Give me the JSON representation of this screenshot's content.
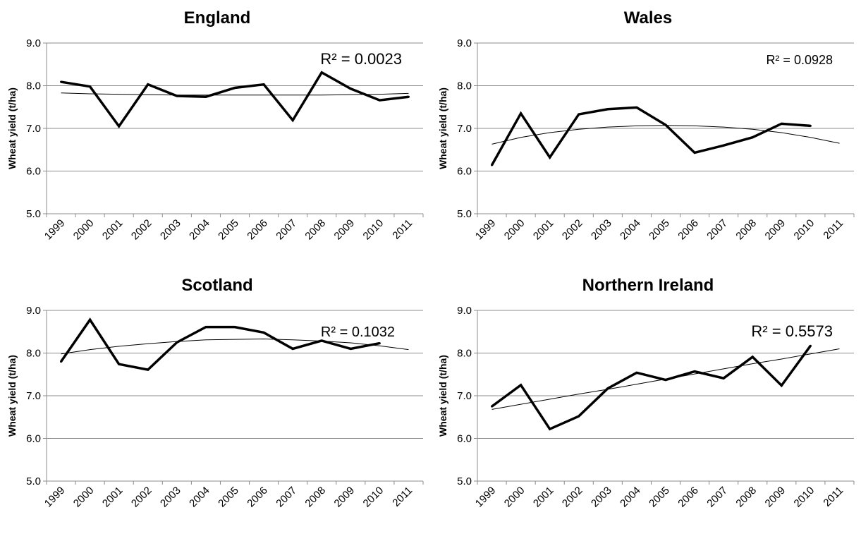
{
  "chart_data": [
    {
      "type": "line",
      "title": "England",
      "ylabel": "Wheat yield (t/ha)",
      "xlabel": "",
      "ylim": [
        5.0,
        9.0
      ],
      "ytick_labels": [
        "5.0",
        "6.0",
        "7.0",
        "8.0",
        "9.0"
      ],
      "categories": [
        "1999",
        "2000",
        "2001",
        "2002",
        "2003",
        "2004",
        "2005",
        "2006",
        "2007",
        "2008",
        "2009",
        "2010",
        "2011"
      ],
      "series": [
        {
          "values": [
            8.09,
            7.98,
            7.05,
            8.03,
            7.76,
            7.74,
            7.95,
            8.03,
            7.19,
            8.31,
            7.93,
            7.66,
            7.74
          ],
          "color": "#000000"
        }
      ],
      "trendline": {
        "kind": "polynomial",
        "values": [
          7.83,
          7.81,
          7.8,
          7.79,
          7.78,
          7.78,
          7.78,
          7.78,
          7.78,
          7.78,
          7.79,
          7.8,
          7.82
        ]
      },
      "r2_label": "R² = 0.0023",
      "grid": true,
      "legend": "none"
    },
    {
      "type": "line",
      "title": "Wales",
      "ylabel": "Wheat yield (t/ha)",
      "xlabel": "",
      "ylim": [
        5.0,
        9.0
      ],
      "ytick_labels": [
        "5.0",
        "6.0",
        "7.0",
        "8.0",
        "9.0"
      ],
      "categories": [
        "1999",
        "2000",
        "2001",
        "2002",
        "2003",
        "2004",
        "2005",
        "2006",
        "2007",
        "2008",
        "2009",
        "2010",
        "2011"
      ],
      "series": [
        {
          "values": [
            6.14,
            7.35,
            6.32,
            7.33,
            7.45,
            7.49,
            7.08,
            6.43,
            6.6,
            6.79,
            7.11,
            7.06,
            null
          ],
          "color": "#000000"
        }
      ],
      "trendline": {
        "kind": "polynomial",
        "values": [
          6.63,
          6.79,
          6.9,
          6.98,
          7.03,
          7.06,
          7.07,
          7.06,
          7.03,
          6.98,
          6.9,
          6.79,
          6.65
        ]
      },
      "r2_label": "R² = 0.0928",
      "grid": true,
      "legend": "none"
    },
    {
      "type": "line",
      "title": "Scotland",
      "ylabel": "Wheat yield (t/ha)",
      "xlabel": "",
      "ylim": [
        5.0,
        9.0
      ],
      "ytick_labels": [
        "5.0",
        "6.0",
        "7.0",
        "8.0",
        "9.0"
      ],
      "categories": [
        "1999",
        "2000",
        "2001",
        "2002",
        "2003",
        "2004",
        "2005",
        "2006",
        "2007",
        "2008",
        "2009",
        "2010",
        "2011"
      ],
      "series": [
        {
          "values": [
            7.8,
            8.78,
            7.74,
            7.61,
            8.25,
            8.61,
            8.61,
            8.48,
            8.1,
            8.29,
            8.1,
            8.23,
            null
          ],
          "color": "#000000"
        }
      ],
      "trendline": {
        "kind": "polynomial",
        "values": [
          7.98,
          8.08,
          8.16,
          8.22,
          8.27,
          8.31,
          8.32,
          8.33,
          8.31,
          8.28,
          8.24,
          8.17,
          8.08
        ]
      },
      "r2_label": "R² = 0.1032",
      "grid": true,
      "legend": "none"
    },
    {
      "type": "line",
      "title": "Northern Ireland",
      "ylabel": "Wheat yield (t/ha)",
      "xlabel": "",
      "ylim": [
        5.0,
        9.0
      ],
      "ytick_labels": [
        "5.0",
        "6.0",
        "7.0",
        "8.0",
        "9.0"
      ],
      "categories": [
        "1999",
        "2000",
        "2001",
        "2002",
        "2003",
        "2004",
        "2005",
        "2006",
        "2007",
        "2008",
        "2009",
        "2010",
        "2011"
      ],
      "series": [
        {
          "values": [
            6.75,
            7.25,
            6.22,
            6.52,
            7.17,
            7.54,
            7.37,
            7.57,
            7.41,
            7.91,
            7.24,
            8.17,
            null
          ],
          "color": "#000000"
        }
      ],
      "trendline": {
        "kind": "linear",
        "values": [
          6.68,
          6.8,
          6.92,
          7.04,
          7.15,
          7.27,
          7.39,
          7.51,
          7.63,
          7.75,
          7.86,
          7.98,
          8.1
        ]
      },
      "r2_label": "R² = 0.5573",
      "grid": true,
      "legend": "none"
    }
  ]
}
